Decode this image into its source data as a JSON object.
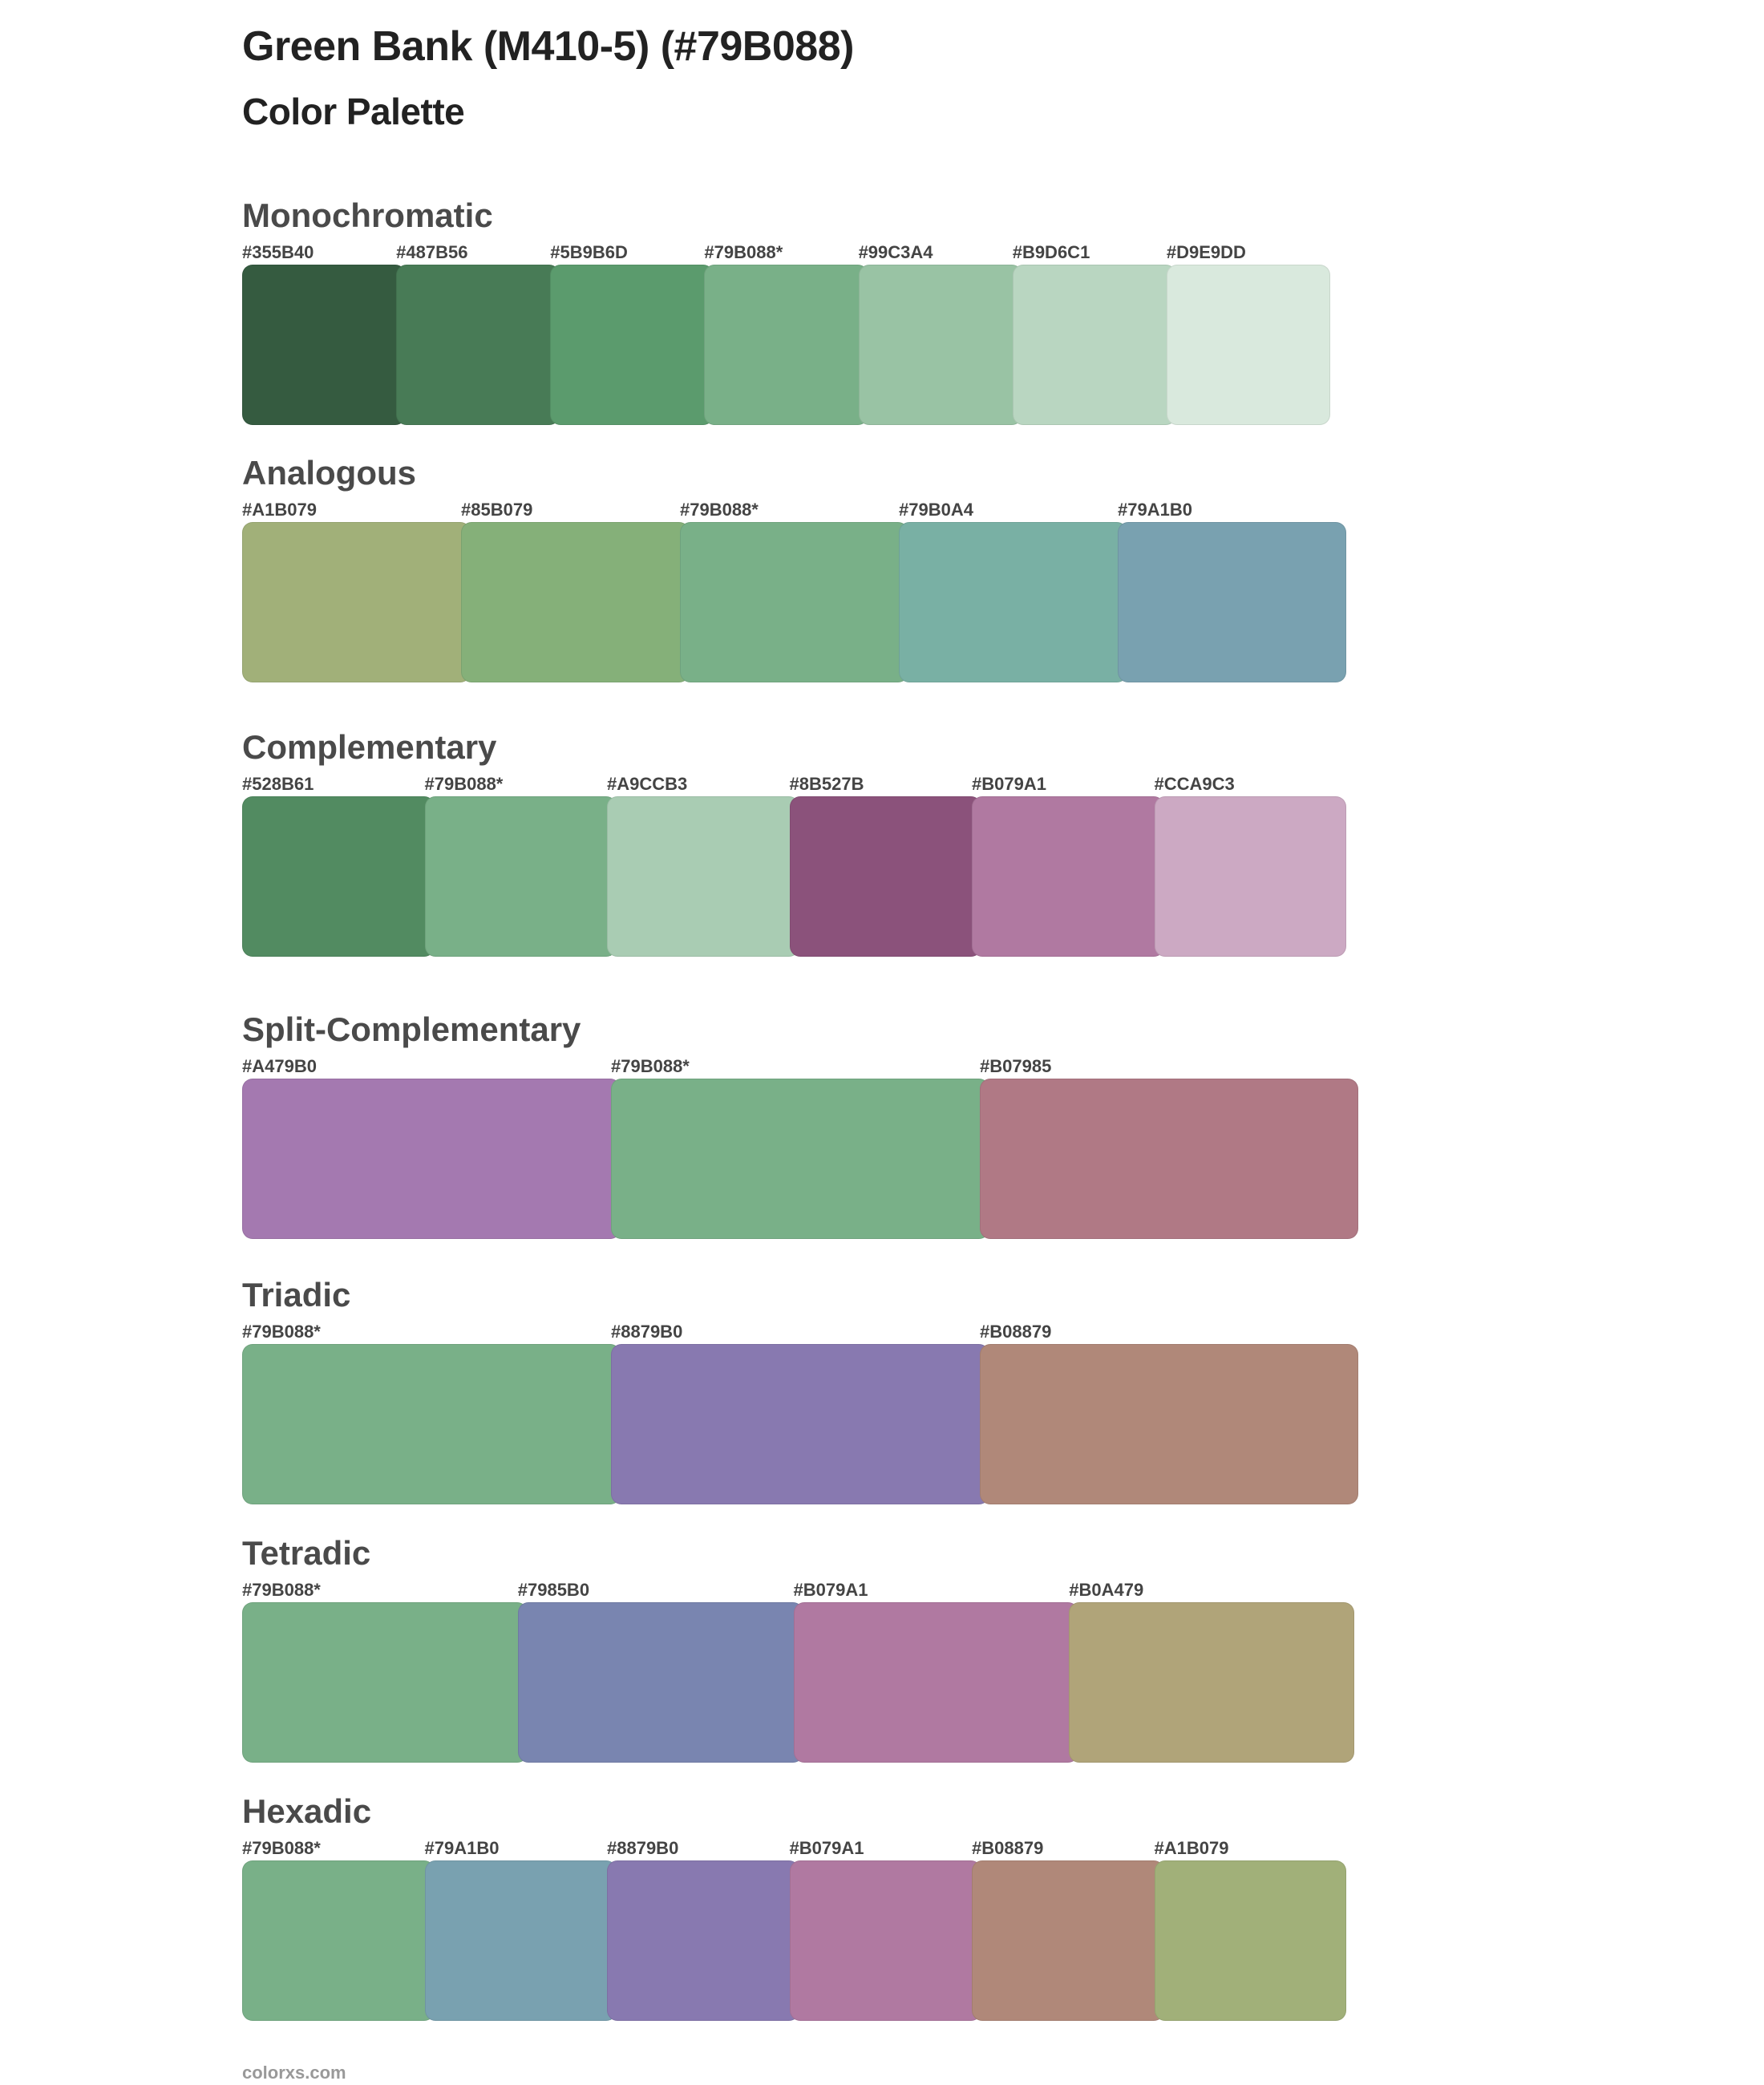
{
  "header": {
    "title": "Green Bank (M410-5) (#79B088)",
    "subtitle": "Color Palette"
  },
  "sections": [
    {
      "name": "Monochromatic",
      "colors": [
        {
          "label": "#355B40",
          "hex": "#355B40"
        },
        {
          "label": "#487B56",
          "hex": "#487B56"
        },
        {
          "label": "#5B9B6D",
          "hex": "#5B9B6D"
        },
        {
          "label": "#79B088*",
          "hex": "#79B088"
        },
        {
          "label": "#99C3A4",
          "hex": "#99C3A4"
        },
        {
          "label": "#B9D6C1",
          "hex": "#B9D6C1"
        },
        {
          "label": "#D9E9DD",
          "hex": "#D9E9DD"
        }
      ]
    },
    {
      "name": "Analogous",
      "colors": [
        {
          "label": "#A1B079",
          "hex": "#A1B079"
        },
        {
          "label": "#85B079",
          "hex": "#85B079"
        },
        {
          "label": "#79B088*",
          "hex": "#79B088"
        },
        {
          "label": "#79B0A4",
          "hex": "#79B0A4"
        },
        {
          "label": "#79A1B0",
          "hex": "#79A1B0"
        }
      ]
    },
    {
      "name": "Complementary",
      "colors": [
        {
          "label": "#528B61",
          "hex": "#528B61"
        },
        {
          "label": "#79B088*",
          "hex": "#79B088"
        },
        {
          "label": "#A9CCB3",
          "hex": "#A9CCB3"
        },
        {
          "label": "#8B527B",
          "hex": "#8B527B"
        },
        {
          "label": "#B079A1",
          "hex": "#B079A1"
        },
        {
          "label": "#CCA9C3",
          "hex": "#CCA9C3"
        }
      ]
    },
    {
      "name": "Split-Complementary",
      "colors": [
        {
          "label": "#A479B0",
          "hex": "#A479B0"
        },
        {
          "label": "#79B088*",
          "hex": "#79B088"
        },
        {
          "label": "#B07985",
          "hex": "#B07985"
        }
      ]
    },
    {
      "name": "Triadic",
      "colors": [
        {
          "label": "#79B088*",
          "hex": "#79B088"
        },
        {
          "label": "#8879B0",
          "hex": "#8879B0"
        },
        {
          "label": "#B08879",
          "hex": "#B08879"
        }
      ]
    },
    {
      "name": "Tetradic",
      "colors": [
        {
          "label": "#79B088*",
          "hex": "#79B088"
        },
        {
          "label": "#7985B0",
          "hex": "#7985B0"
        },
        {
          "label": "#B079A1",
          "hex": "#B079A1"
        },
        {
          "label": "#B0A479",
          "hex": "#B0A479"
        }
      ]
    },
    {
      "name": "Hexadic",
      "colors": [
        {
          "label": "#79B088*",
          "hex": "#79B088"
        },
        {
          "label": "#79A1B0",
          "hex": "#79A1B0"
        },
        {
          "label": "#8879B0",
          "hex": "#8879B0"
        },
        {
          "label": "#B079A1",
          "hex": "#B079A1"
        },
        {
          "label": "#B08879",
          "hex": "#B08879"
        },
        {
          "label": "#A1B079",
          "hex": "#A1B079"
        }
      ]
    }
  ],
  "footer": {
    "text": "colorxs.com"
  }
}
